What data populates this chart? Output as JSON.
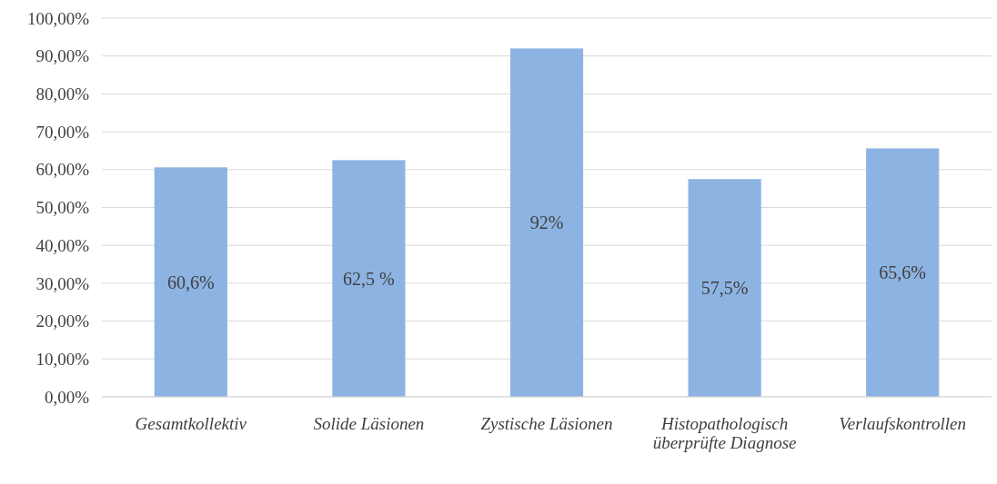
{
  "chart_data": {
    "type": "bar",
    "categories": [
      "Gesamtkollektiv",
      "Solide Läsionen",
      "Zystische Läsionen",
      "Histopathologisch überprüfte Diagnose",
      "Verlaufskontrollen"
    ],
    "values": [
      60.6,
      62.5,
      92,
      57.5,
      65.6
    ],
    "value_labels": [
      "60,6%",
      "62,5 %",
      "92%",
      "57,5%",
      "65,6%"
    ],
    "color": "#8db3e2",
    "ylim": [
      0,
      100
    ],
    "yticks": [
      {
        "value": 0,
        "label": "0,00%"
      },
      {
        "value": 10,
        "label": "10,00%"
      },
      {
        "value": 20,
        "label": "20,00%"
      },
      {
        "value": 30,
        "label": "30,00%"
      },
      {
        "value": 40,
        "label": "40,00%"
      },
      {
        "value": 50,
        "label": "50,00%"
      },
      {
        "value": 60,
        "label": "60,00%"
      },
      {
        "value": 70,
        "label": "70,00%"
      },
      {
        "value": 80,
        "label": "80,00%"
      },
      {
        "value": 90,
        "label": "90,00%"
      },
      {
        "value": 100,
        "label": "100,00%"
      }
    ],
    "grid": "y"
  }
}
